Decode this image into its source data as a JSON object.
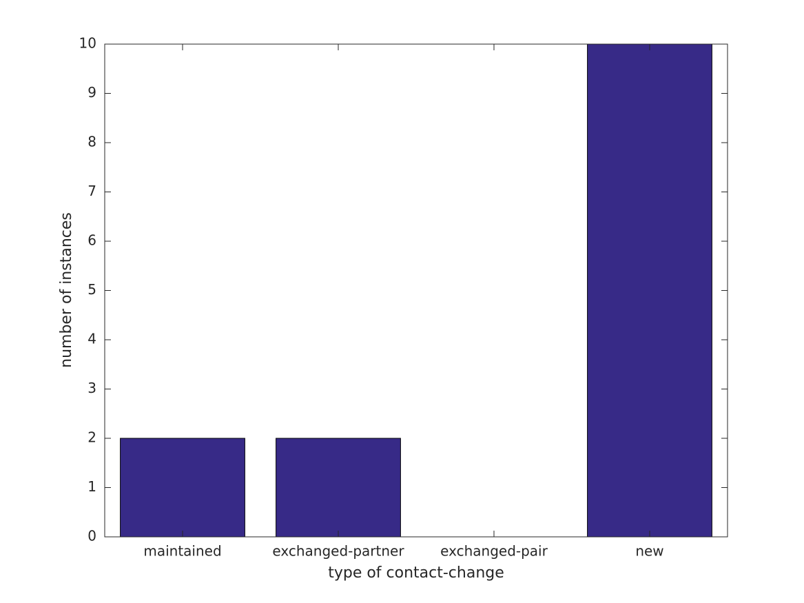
{
  "chart_data": {
    "type": "bar",
    "xlabel": "type of contact-change",
    "ylabel": "number of instances",
    "categories": [
      "maintained",
      "exchanged-partner",
      "exchanged-pair",
      "new"
    ],
    "values": [
      2,
      2,
      0,
      10
    ],
    "color": "#372a87",
    "ylim": [
      0,
      10
    ],
    "yticks": [
      0,
      1,
      2,
      3,
      4,
      5,
      6,
      7,
      8,
      9,
      10
    ],
    "grid": false
  }
}
